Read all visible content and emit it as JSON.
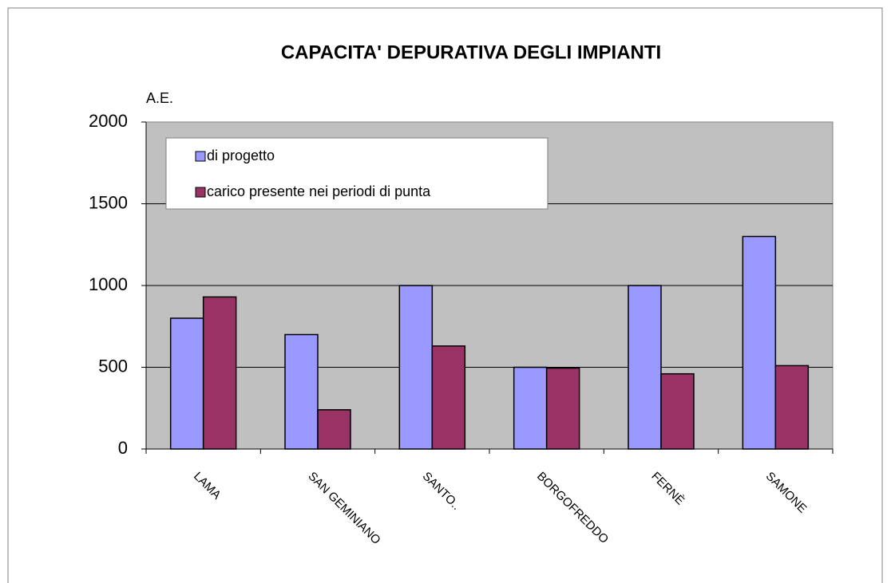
{
  "chart_data": {
    "type": "bar",
    "title": "CAPACITA' DEPURATIVA DEGLI IMPIANTI",
    "y_label": "A.E.",
    "categories": [
      "LAMA",
      "SAN GEMINIANO",
      "SANTO..",
      "BORGOFREDDO",
      "FERNÈ",
      "SAMONE"
    ],
    "series": [
      {
        "name": "di progetto",
        "color": "#9999ff",
        "values": [
          800,
          700,
          1000,
          500,
          1000,
          1300
        ]
      },
      {
        "name": "carico presente nei periodi di punta",
        "color": "#993366",
        "values": [
          930,
          240,
          630,
          495,
          460,
          510
        ]
      }
    ],
    "ylim": [
      0,
      2000
    ],
    "yticks": [
      0,
      500,
      1000,
      1500,
      2000
    ],
    "grid": true,
    "legend": "top-left"
  }
}
